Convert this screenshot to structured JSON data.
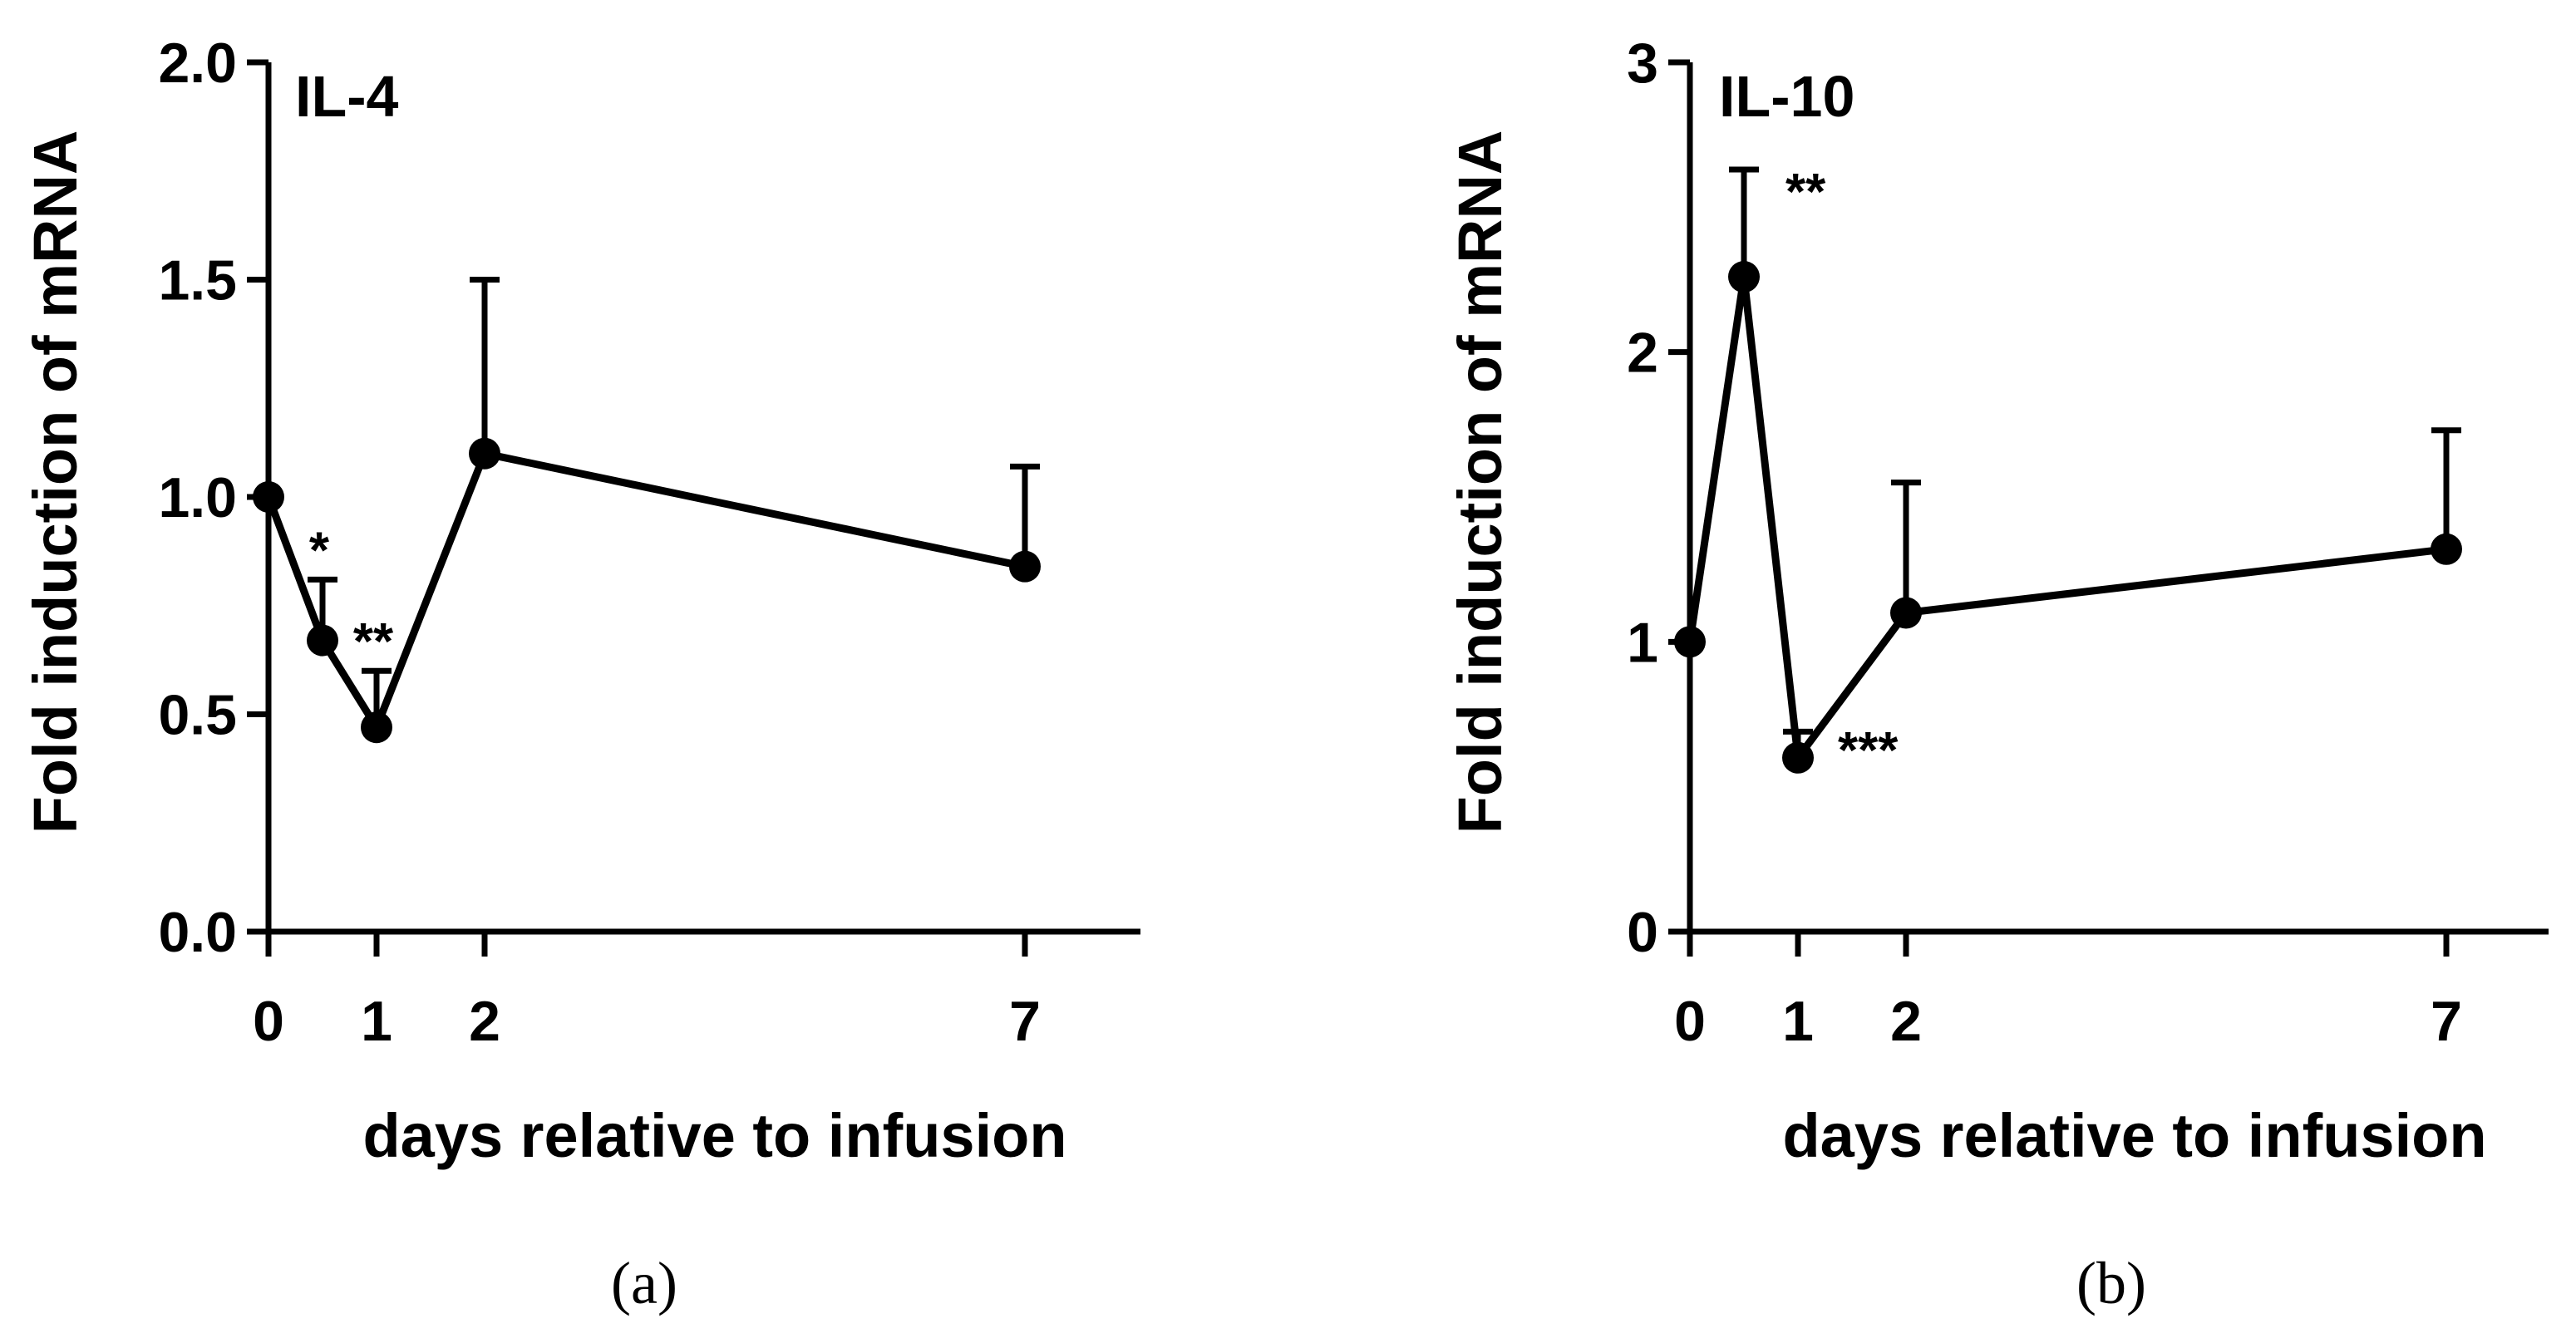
{
  "chart_data": [
    {
      "type": "line",
      "panel_label": "(a)",
      "title": "IL-4",
      "xlabel": "days relative to infusion",
      "ylabel": "Fold induction of mRNA",
      "xlim": [
        0,
        8
      ],
      "ylim": [
        0,
        2.0
      ],
      "x_ticks": [
        0,
        1,
        2,
        7
      ],
      "x_tick_labels": [
        "0",
        "1",
        "2",
        "7"
      ],
      "y_ticks": [
        0,
        0.5,
        1.0,
        1.5,
        2.0
      ],
      "y_tick_labels": [
        "0.0",
        "0.5",
        "1.0",
        "1.5",
        "2.0"
      ],
      "series": [
        {
          "name": "IL-4",
          "x": [
            0,
            0.5,
            1,
            2,
            7
          ],
          "y": [
            1.0,
            0.67,
            0.47,
            1.1,
            0.84
          ],
          "error_upper": [
            1.0,
            0.81,
            0.6,
            1.5,
            1.07
          ],
          "significance": [
            "",
            "*",
            "**",
            "",
            ""
          ]
        }
      ]
    },
    {
      "type": "line",
      "panel_label": "(b)",
      "title": "IL-10",
      "xlabel": "days relative to infusion",
      "ylabel": "Fold induction of mRNA",
      "xlim": [
        0,
        8
      ],
      "ylim": [
        0,
        3
      ],
      "x_ticks": [
        0,
        1,
        2,
        7
      ],
      "x_tick_labels": [
        "0",
        "1",
        "2",
        "7"
      ],
      "y_ticks": [
        0,
        1,
        2,
        3
      ],
      "y_tick_labels": [
        "0",
        "1",
        "2",
        "3"
      ],
      "series": [
        {
          "name": "IL-10",
          "x": [
            0,
            0.5,
            1,
            2,
            7
          ],
          "y": [
            1.0,
            2.26,
            0.6,
            1.1,
            1.32
          ],
          "error_upper": [
            1.0,
            2.63,
            0.69,
            1.55,
            1.73
          ],
          "significance": [
            "",
            "**",
            "***",
            "",
            ""
          ]
        }
      ]
    }
  ]
}
